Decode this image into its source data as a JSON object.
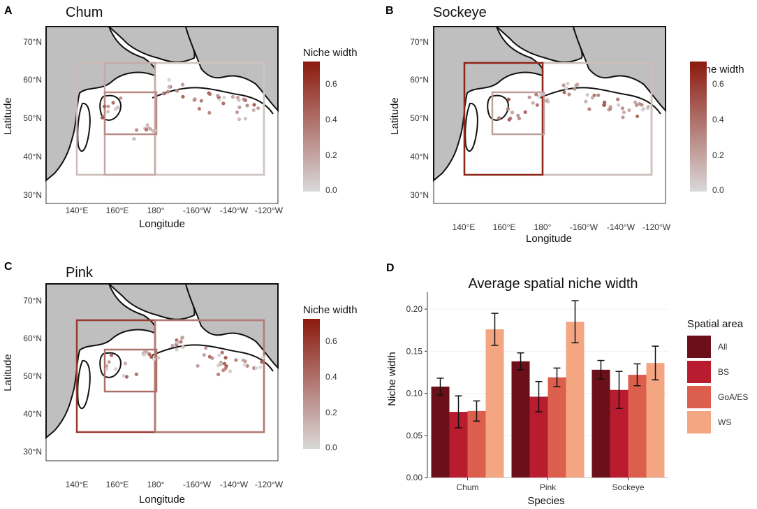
{
  "colors": {
    "scale_high": "#8b1a0e",
    "scale_low": "#d9d9d9",
    "land": "#bfbfbf",
    "series": [
      "#6b0f1a",
      "#b81c2e",
      "#dc5f4d",
      "#f4a683"
    ]
  },
  "chart_data": [
    {
      "id": "A",
      "type": "scatter",
      "panel_label": "A",
      "title": "Chum",
      "xlabel": "Longitude",
      "ylabel": "Latitude",
      "xticks": [
        "140°E",
        "160°E",
        "180°",
        "-160°W",
        "-140°W",
        "-120°W"
      ],
      "yticks": [
        "30°N",
        "40°N",
        "50°N",
        "60°N",
        "70°N"
      ],
      "legend_title": "Niche width",
      "legend_ticks": [
        "0.6",
        "0.4",
        "0.2",
        "0.0"
      ],
      "legend_range": [
        0,
        0.72
      ],
      "regions": [
        {
          "name": "All",
          "lon": [
            140,
            235
          ],
          "lat": [
            35,
            65
          ],
          "value": 0.11
        },
        {
          "name": "BS",
          "lon": [
            180,
            235
          ],
          "lat": [
            35,
            65
          ],
          "value": 0.08
        },
        {
          "name": "GoA/ES",
          "lon": [
            154,
            180
          ],
          "lat": [
            35,
            65
          ],
          "value": 0.18
        },
        {
          "name": "WS",
          "lon": [
            154,
            180
          ],
          "lat": [
            46,
            57
          ],
          "value": 0.3
        }
      ]
    },
    {
      "id": "B",
      "type": "scatter",
      "panel_label": "B",
      "title": "Sockeye",
      "xlabel": "Longitude",
      "ylabel": "Latitude",
      "xticks": [
        "140°E",
        "160°E",
        "180°",
        "-160°W",
        "-140°W",
        "-120°W"
      ],
      "yticks": [
        "30°N",
        "40°N",
        "50°N",
        "60°N",
        "70°N"
      ],
      "legend_title": "Niche width",
      "legend_ticks": [
        "0.6",
        "0.4",
        "0.2",
        "0.0"
      ],
      "legend_range": [
        0,
        0.72
      ],
      "regions": [
        {
          "name": "All",
          "lon": [
            140,
            235
          ],
          "lat": [
            35,
            65
          ],
          "value": 0.13
        },
        {
          "name": "BS",
          "lon": [
            180,
            235
          ],
          "lat": [
            35,
            65
          ],
          "value": 0.1
        },
        {
          "name": "GoA/ES",
          "lon": [
            140,
            180
          ],
          "lat": [
            35,
            65
          ],
          "value": 0.68
        },
        {
          "name": "WS",
          "lon": [
            154,
            180
          ],
          "lat": [
            46,
            57
          ],
          "value": 0.22
        }
      ]
    },
    {
      "id": "C",
      "type": "scatter",
      "panel_label": "C",
      "title": "Pink",
      "xlabel": "Longitude",
      "ylabel": "Latitude",
      "xticks": [
        "140°E",
        "160°E",
        "180°",
        "-160°W",
        "-140°W",
        "-120°W"
      ],
      "yticks": [
        "30°N",
        "40°N",
        "50°N",
        "60°N",
        "70°N"
      ],
      "legend_title": "Niche width",
      "legend_ticks": [
        "0.6",
        "0.4",
        "0.2",
        "0.0"
      ],
      "legend_range": [
        0,
        0.72
      ],
      "regions": [
        {
          "name": "All",
          "lon": [
            180,
            235
          ],
          "lat": [
            35,
            65
          ],
          "value": 0.3
        },
        {
          "name": "BS",
          "lon": [
            140,
            180
          ],
          "lat": [
            35,
            65
          ],
          "value": 0.6
        },
        {
          "name": "GoA/ES",
          "lon": [
            180,
            235
          ],
          "lat": [
            35,
            65
          ],
          "value": 0.35
        },
        {
          "name": "WS",
          "lon": [
            154,
            180
          ],
          "lat": [
            46,
            57
          ],
          "value": 0.4
        }
      ]
    },
    {
      "id": "D",
      "type": "bar",
      "panel_label": "D",
      "title": "Average spatial niche width",
      "xlabel": "Species",
      "ylabel": "Niche width",
      "categories": [
        "Chum",
        "Pink",
        "Sockeye"
      ],
      "ylim": [
        0,
        0.22
      ],
      "yticks": [
        "0.00",
        "0.05",
        "0.10",
        "0.15",
        "0.20"
      ],
      "legend_title": "Spatial area",
      "series": [
        {
          "name": "All",
          "values": [
            0.108,
            0.138,
            0.128
          ],
          "errors": [
            0.01,
            0.01,
            0.011
          ]
        },
        {
          "name": "BS",
          "values": [
            0.078,
            0.096,
            0.104
          ],
          "errors": [
            0.019,
            0.018,
            0.022
          ]
        },
        {
          "name": "GoA/ES",
          "values": [
            0.079,
            0.119,
            0.122
          ],
          "errors": [
            0.012,
            0.011,
            0.013
          ]
        },
        {
          "name": "WS",
          "values": [
            0.176,
            0.185,
            0.136
          ],
          "errors": [
            0.019,
            0.025,
            0.02
          ]
        }
      ]
    }
  ]
}
